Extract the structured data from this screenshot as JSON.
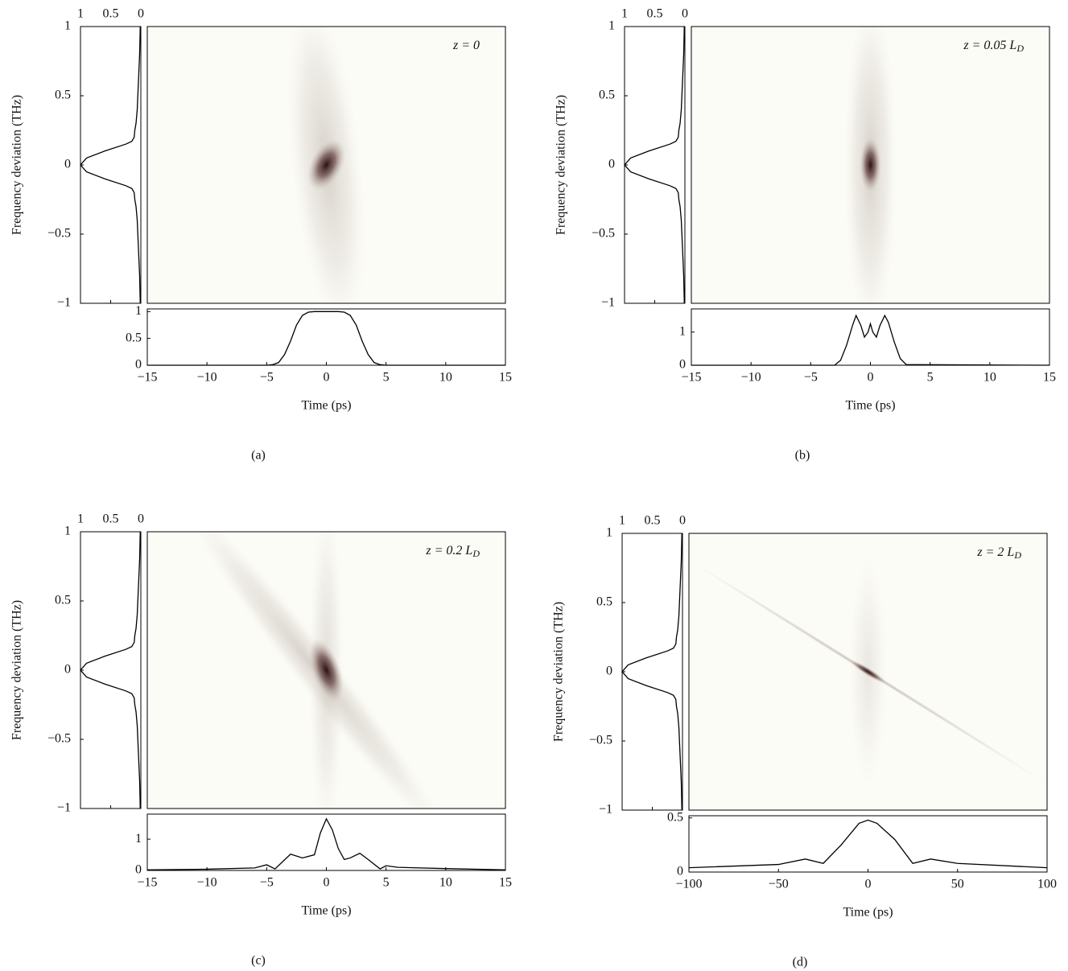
{
  "chart_data": [
    {
      "type": "spectrogram",
      "label": "(a)",
      "annotation": "z = 0",
      "ylabel": "Frequency deviation (THz)",
      "xlabel": "Time (ps)",
      "spectrum": {
        "type": "line",
        "y": [
          -1,
          -0.8,
          -0.6,
          -0.4,
          -0.3,
          -0.25,
          -0.2,
          -0.17,
          -0.15,
          -0.1,
          -0.05,
          0,
          0.05,
          0.1,
          0.15,
          0.17,
          0.2,
          0.25,
          0.3,
          0.4,
          0.6,
          0.8,
          1
        ],
        "values": [
          0.01,
          0.02,
          0.04,
          0.06,
          0.08,
          0.1,
          0.11,
          0.15,
          0.25,
          0.6,
          0.9,
          1,
          0.9,
          0.6,
          0.25,
          0.15,
          0.11,
          0.1,
          0.08,
          0.06,
          0.04,
          0.02,
          0.01
        ],
        "xlim": [
          1,
          0
        ],
        "xticks": [
          1,
          0.5,
          0
        ],
        "ylim": [
          -1,
          1
        ],
        "yticks": [
          {
            "value": -1,
            "label": "−1"
          },
          {
            "value": -0.5,
            "label": "−0.5"
          },
          0,
          0.5,
          1
        ]
      },
      "profile": {
        "type": "line",
        "x": [
          -15,
          -5,
          -4.5,
          -4,
          -3.5,
          -3,
          -2.5,
          -2,
          -1.5,
          -1,
          0,
          1,
          1.5,
          2,
          2.5,
          3,
          3.5,
          4,
          4.5,
          5,
          15
        ],
        "values": [
          0,
          0,
          0.01,
          0.05,
          0.2,
          0.45,
          0.75,
          0.93,
          0.99,
          1,
          1,
          1,
          0.99,
          0.93,
          0.75,
          0.45,
          0.2,
          0.05,
          0.01,
          0,
          0
        ],
        "xlim": [
          -15,
          15
        ],
        "xticks": [
          {
            "value": -15,
            "label": "−15"
          },
          {
            "value": -10,
            "label": "−10"
          },
          {
            "value": -5,
            "label": "−5"
          },
          0,
          5,
          10,
          15
        ],
        "ylim": [
          0,
          1.05
        ],
        "yticks": [
          0,
          0.5,
          1
        ]
      }
    },
    {
      "type": "spectrogram",
      "label": "(b)",
      "annotation": "z = 0.05 L",
      "annotation_sub": "D",
      "ylabel": "Frequency deviation (THz)",
      "xlabel": "Time (ps)",
      "spectrum": {
        "type": "line",
        "y": [
          -1,
          -0.8,
          -0.6,
          -0.4,
          -0.3,
          -0.25,
          -0.2,
          -0.17,
          -0.15,
          -0.1,
          -0.05,
          0,
          0.05,
          0.1,
          0.15,
          0.17,
          0.2,
          0.25,
          0.3,
          0.4,
          0.6,
          0.8,
          1
        ],
        "values": [
          0.01,
          0.02,
          0.04,
          0.06,
          0.08,
          0.1,
          0.11,
          0.15,
          0.25,
          0.6,
          0.9,
          1,
          0.9,
          0.6,
          0.25,
          0.15,
          0.11,
          0.1,
          0.08,
          0.06,
          0.04,
          0.02,
          0.01
        ],
        "xlim": [
          1,
          0
        ],
        "xticks": [
          1,
          0.5,
          0
        ],
        "ylim": [
          -1,
          1
        ],
        "yticks": [
          {
            "value": -1,
            "label": "−1"
          },
          {
            "value": -0.5,
            "label": "−0.5"
          },
          0,
          0.5,
          1
        ]
      },
      "profile": {
        "type": "line",
        "x": [
          -15,
          -3,
          -2.5,
          -2,
          -1.5,
          -1.2,
          -0.8,
          -0.5,
          -0.2,
          0,
          0.2,
          0.5,
          0.8,
          1.2,
          1.5,
          2,
          2.5,
          3,
          15
        ],
        "values": [
          0,
          0,
          0.15,
          0.6,
          1.2,
          1.5,
          1.2,
          0.85,
          1.0,
          1.25,
          1.0,
          0.85,
          1.2,
          1.5,
          1.3,
          0.7,
          0.2,
          0.02,
          0
        ],
        "xlim": [
          -15,
          15
        ],
        "xticks": [
          {
            "value": -15,
            "label": "−15"
          },
          {
            "value": -10,
            "label": "−10"
          },
          {
            "value": -5,
            "label": "−5"
          },
          0,
          5,
          10,
          15
        ],
        "ylim": [
          0,
          1.7
        ],
        "yticks": [
          0,
          1
        ]
      }
    },
    {
      "type": "spectrogram",
      "label": "(c)",
      "annotation": "z = 0.2 L",
      "annotation_sub": "D",
      "ylabel": "Frequency deviation (THz)",
      "xlabel": "Time (ps)",
      "spectrum": {
        "type": "line",
        "y": [
          -1,
          -0.8,
          -0.6,
          -0.4,
          -0.3,
          -0.25,
          -0.2,
          -0.17,
          -0.15,
          -0.1,
          -0.05,
          0,
          0.05,
          0.1,
          0.15,
          0.17,
          0.2,
          0.25,
          0.3,
          0.4,
          0.6,
          0.8,
          1
        ],
        "values": [
          0.01,
          0.02,
          0.04,
          0.06,
          0.08,
          0.1,
          0.11,
          0.15,
          0.25,
          0.6,
          0.9,
          1,
          0.9,
          0.6,
          0.25,
          0.15,
          0.11,
          0.1,
          0.08,
          0.06,
          0.04,
          0.02,
          0.01
        ],
        "xlim": [
          1,
          0
        ],
        "xticks": [
          1,
          0.5,
          0
        ],
        "ylim": [
          -1,
          1
        ],
        "yticks": [
          {
            "value": -1,
            "label": "−1"
          },
          {
            "value": -0.5,
            "label": "−0.5"
          },
          0,
          0.5,
          1
        ]
      },
      "profile": {
        "type": "line",
        "x": [
          -15,
          -10,
          -6,
          -5,
          -4.3,
          -3,
          -2,
          -1,
          -0.5,
          0,
          0.5,
          1,
          1.5,
          2,
          2.8,
          3.5,
          4.5,
          5,
          6,
          10,
          15
        ],
        "values": [
          0.02,
          0.04,
          0.08,
          0.18,
          0.05,
          0.52,
          0.4,
          0.5,
          1.2,
          1.65,
          1.3,
          0.7,
          0.35,
          0.4,
          0.55,
          0.35,
          0.05,
          0.15,
          0.1,
          0.06,
          0.02
        ],
        "xlim": [
          -15,
          15
        ],
        "xticks": [
          {
            "value": -15,
            "label": "−15"
          },
          {
            "value": -10,
            "label": "−10"
          },
          {
            "value": -5,
            "label": "−5"
          },
          0,
          5,
          10,
          15
        ],
        "ylim": [
          0,
          1.8
        ],
        "yticks": [
          0,
          1
        ]
      }
    },
    {
      "type": "spectrogram",
      "label": "(d)",
      "annotation": "z = 2 L",
      "annotation_sub": "D",
      "ylabel": "Frequency deviation (THz)",
      "xlabel": "Time (ps)",
      "spectrum": {
        "type": "line",
        "y": [
          -1,
          -0.8,
          -0.6,
          -0.4,
          -0.3,
          -0.25,
          -0.2,
          -0.17,
          -0.15,
          -0.1,
          -0.05,
          0,
          0.05,
          0.1,
          0.15,
          0.17,
          0.2,
          0.25,
          0.3,
          0.4,
          0.6,
          0.8,
          1
        ],
        "values": [
          0.01,
          0.02,
          0.04,
          0.06,
          0.08,
          0.1,
          0.11,
          0.15,
          0.25,
          0.6,
          0.9,
          1,
          0.9,
          0.6,
          0.25,
          0.15,
          0.11,
          0.1,
          0.08,
          0.06,
          0.04,
          0.02,
          0.01
        ],
        "xlim": [
          1,
          0
        ],
        "xticks": [
          1,
          0.5,
          0
        ],
        "ylim": [
          -1,
          1
        ],
        "yticks": [
          {
            "value": -1,
            "label": "−1"
          },
          {
            "value": -0.5,
            "label": "−0.5"
          },
          0,
          0.5,
          1
        ]
      },
      "profile": {
        "type": "line",
        "x": [
          -100,
          -50,
          -35,
          -25,
          -15,
          -5,
          0,
          5,
          15,
          25,
          35,
          50,
          100
        ],
        "values": [
          0.04,
          0.07,
          0.12,
          0.08,
          0.25,
          0.45,
          0.48,
          0.45,
          0.3,
          0.08,
          0.12,
          0.08,
          0.04
        ],
        "xlim": [
          -100,
          100
        ],
        "xticks": [
          {
            "value": -100,
            "label": "−100"
          },
          {
            "value": -50,
            "label": "−50"
          },
          0,
          50,
          100
        ],
        "ylim": [
          0,
          0.52
        ],
        "yticks": [
          0,
          0.5
        ]
      }
    }
  ]
}
